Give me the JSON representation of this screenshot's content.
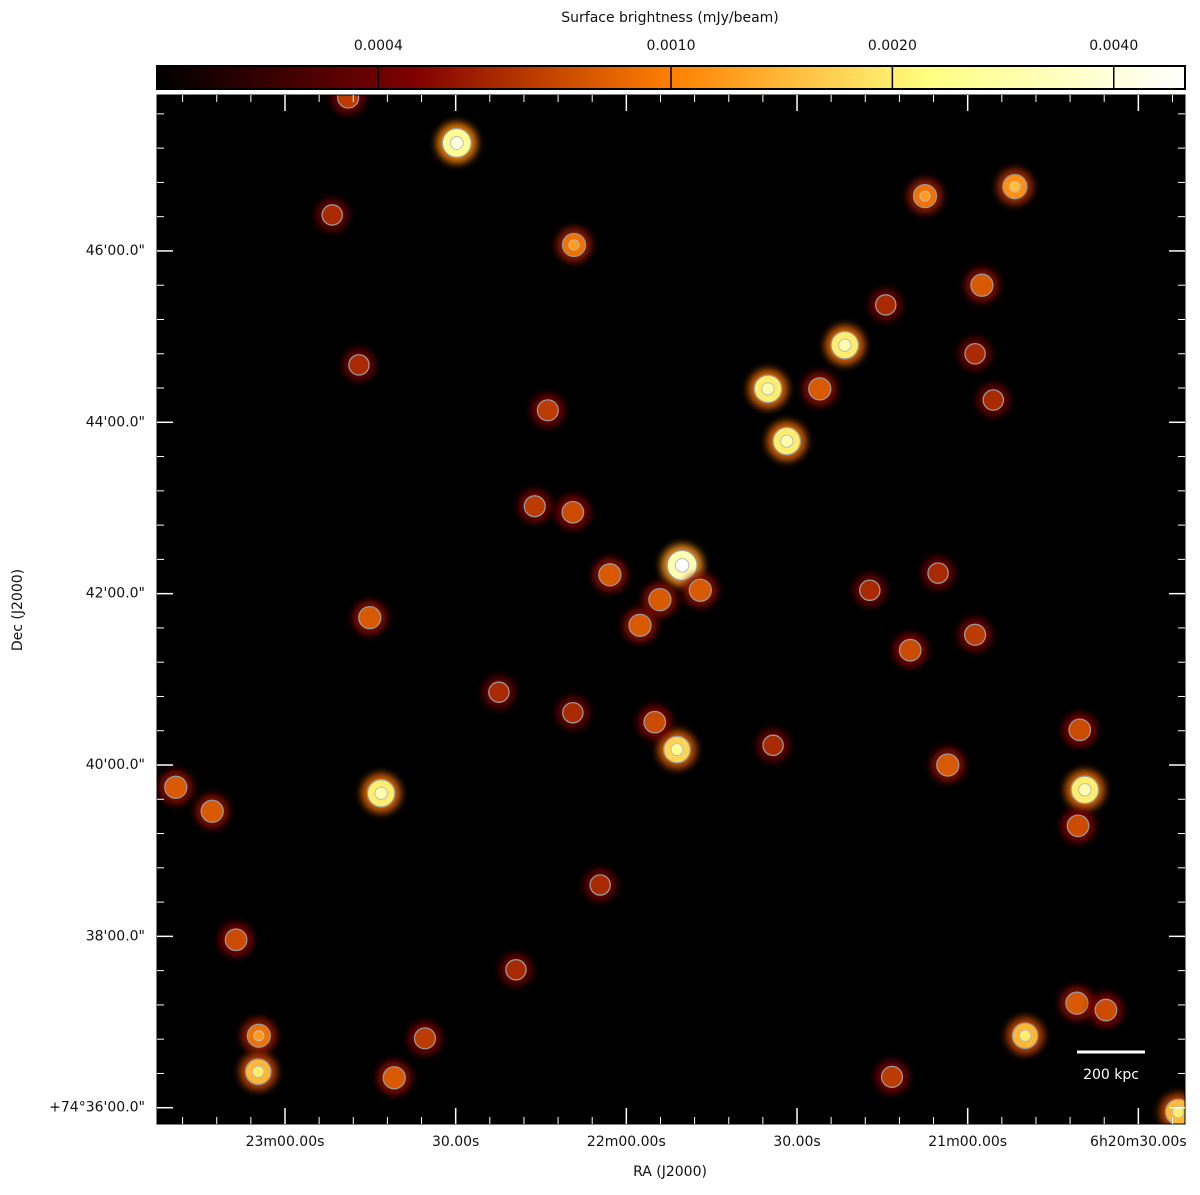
{
  "chart_data": {
    "type": "image",
    "colorbar_label": "Surface brightness (mJy/beam)",
    "clim": [
      0.0002,
      0.005
    ],
    "clog": true,
    "cticks": [
      0.0004,
      {
        "value": 0.001,
        "label": "0.0010"
      },
      {
        "value": 0.002,
        "label": "0.0020"
      },
      {
        "value": 0.004,
        "label": "0.0040"
      }
    ],
    "xlabel": "RA (J2000)",
    "ylabel": "Dec (J2000)",
    "xlim": [
      1402.5,
      1221.8
    ],
    "ylim": [
      35.81,
      47.82
    ],
    "xticks": [
      {
        "value": 1380,
        "label": "23m00.00s"
      },
      {
        "value": 1350,
        "label": "30.00s"
      },
      {
        "value": 1320,
        "label": "22m00.00s"
      },
      {
        "value": 1290,
        "label": "30.00s"
      },
      {
        "value": 1260,
        "label": "21m00.00s"
      },
      {
        "value": 1230,
        "label": "6h20m30.00s"
      }
    ],
    "yticks": [
      {
        "value": 36,
        "label": "+74°36'00.0\""
      },
      {
        "value": 38,
        "label": "38'00.0\""
      },
      {
        "value": 40,
        "label": "40'00.0\""
      },
      {
        "value": 42,
        "label": "42'00.0\""
      },
      {
        "value": 44,
        "label": "44'00.0\""
      },
      {
        "value": 46,
        "label": "46'00.0\""
      }
    ],
    "scale_bar_label": "200 kpc",
    "sources": {
      "x": [
        1310.2,
        1349.8,
        1291.8,
        1295.1,
        1281.6,
        1239.4,
        1363.1,
        1311.1,
        1251.7,
        1267.5,
        1329.2,
        1286.0,
        1257.5,
        1322.9,
        1365.1,
        1329.4,
        1336.1,
        1333.8,
        1263.5,
        1240.3,
        1270.1,
        1315.0,
        1399.2,
        1392.8,
        1384.7,
        1384.6,
        1360.8,
        1249.9,
        1240.8,
        1235.7,
        1273.3,
        1388.6,
        1355.4,
        1240.6,
        1274.4,
        1367.0,
        1371.7,
        1258.7,
        1223.0,
        1339.4,
        1324.6,
        1294.2,
        1329.4,
        1342.4,
        1277.2,
        1265.2,
        1258.7,
        1255.5,
        1368.9,
        1314.1,
        1317.6,
        1307.0
      ],
      "y": [
        42.33,
        47.26,
        43.78,
        44.39,
        44.9,
        39.71,
        39.67,
        40.18,
        46.75,
        46.64,
        46.07,
        44.39,
        45.6,
        42.22,
        41.72,
        42.95,
        43.02,
        44.14,
        40.0,
        40.41,
        41.34,
        40.5,
        39.74,
        39.46,
        36.42,
        36.84,
        36.35,
        36.84,
        37.22,
        37.14,
        36.36,
        37.96,
        36.81,
        39.29,
        45.37,
        44.67,
        46.42,
        41.52,
        35.95,
        37.61,
        38.6,
        40.23,
        40.61,
        40.85,
        42.04,
        42.24,
        44.8,
        44.26,
        47.79,
        41.93,
        41.63,
        42.04
      ],
      "values": [
        0.005,
        0.004,
        0.003,
        0.003,
        0.003,
        0.003,
        0.003,
        0.0025,
        0.0015,
        0.0012,
        0.0012,
        0.001,
        0.001,
        0.001,
        0.001,
        0.0009,
        0.0008,
        0.0008,
        0.001,
        0.0009,
        0.0009,
        0.0009,
        0.001,
        0.001,
        0.002,
        0.0012,
        0.001,
        0.002,
        0.001,
        0.0009,
        0.0008,
        0.0009,
        0.0008,
        0.0009,
        0.0007,
        0.0007,
        0.0007,
        0.0008,
        0.002,
        0.0007,
        0.0007,
        0.0007,
        0.0007,
        0.0007,
        0.0007,
        0.0007,
        0.0007,
        0.0007,
        0.0008,
        0.001,
        0.001,
        0.001
      ]
    }
  }
}
